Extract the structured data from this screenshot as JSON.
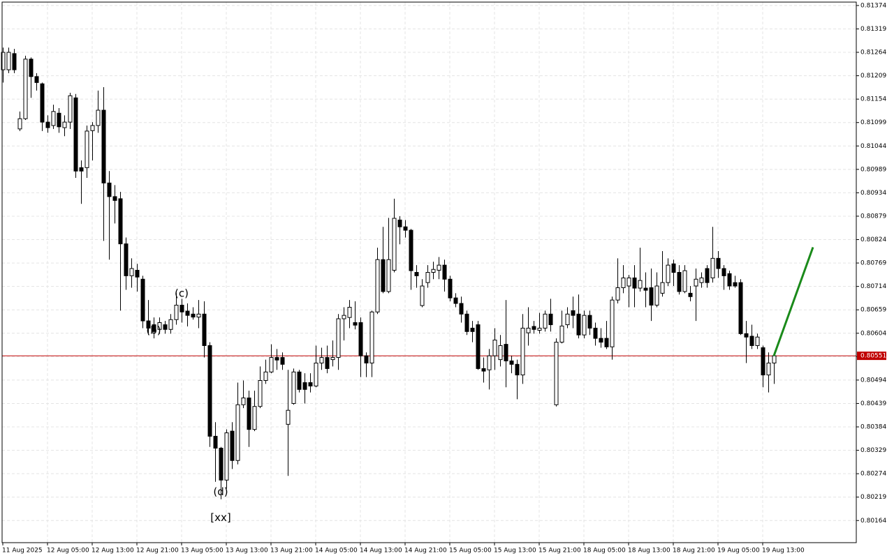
{
  "chart_data": {
    "type": "candlestick",
    "bull_color": "#ffffff",
    "bear_color": "#000000",
    "grid": true,
    "ylim": [
      0.80112,
      0.81382
    ],
    "yticks": [
      0.81374,
      0.81319,
      0.81264,
      0.81209,
      0.81154,
      0.81099,
      0.81044,
      0.80989,
      0.80934,
      0.80879,
      0.80824,
      0.80769,
      0.80714,
      0.80659,
      0.80604,
      0.80549,
      0.80494,
      0.80439,
      0.80384,
      0.80329,
      0.80274,
      0.80219,
      0.80164
    ],
    "categories": [
      "11 Aug 2025",
      null,
      null,
      null,
      null,
      null,
      null,
      null,
      "12 Aug 05:00",
      null,
      null,
      null,
      null,
      null,
      null,
      null,
      "12 Aug 13:00",
      null,
      null,
      null,
      null,
      null,
      null,
      null,
      "12 Aug 21:00",
      null,
      null,
      null,
      null,
      null,
      null,
      null,
      "13 Aug 05:00",
      null,
      null,
      null,
      null,
      null,
      null,
      null,
      "13 Aug 13:00",
      null,
      null,
      null,
      null,
      null,
      null,
      null,
      "13 Aug 21:00",
      null,
      null,
      null,
      null,
      null,
      null,
      null,
      "14 Aug 05:00",
      null,
      null,
      null,
      null,
      null,
      null,
      null,
      "14 Aug 13:00",
      null,
      null,
      null,
      null,
      null,
      null,
      null,
      "14 Aug 21:00",
      null,
      null,
      null,
      null,
      null,
      null,
      null,
      "15 Aug 05:00",
      null,
      null,
      null,
      null,
      null,
      null,
      null,
      "15 Aug 13:00",
      null,
      null,
      null,
      null,
      null,
      null,
      null,
      "15 Aug 21:00",
      null,
      null,
      null,
      null,
      null,
      null,
      null,
      "18 Aug 05:00",
      null,
      null,
      null,
      null,
      null,
      null,
      null,
      "18 Aug 13:00",
      null,
      null,
      null,
      null,
      null,
      null,
      null,
      "18 Aug 21:00",
      null,
      null,
      null,
      null,
      null,
      null,
      null,
      "19 Aug 05:00",
      null,
      null,
      null,
      null,
      null,
      null,
      null,
      "19 Aug 13:00",
      null,
      null
    ],
    "candles": [
      [
        0.81223,
        0.81275,
        0.81193,
        0.81264
      ],
      [
        0.81223,
        0.81275,
        0.81215,
        0.81264
      ],
      [
        0.81261,
        0.81272,
        0.81215,
        0.81223
      ],
      [
        0.81084,
        0.81125,
        0.81079,
        0.81108
      ],
      [
        0.81108,
        0.81256,
        0.81105,
        0.81248
      ],
      [
        0.81248,
        0.81252,
        0.81157,
        0.81207
      ],
      [
        0.81207,
        0.81215,
        0.81174,
        0.81193
      ],
      [
        0.8119,
        0.81193,
        0.81079,
        0.811
      ],
      [
        0.811,
        0.81116,
        0.81075,
        0.81087
      ],
      [
        0.81092,
        0.81141,
        0.81084,
        0.81125
      ],
      [
        0.81121,
        0.81133,
        0.81075,
        0.81089
      ],
      [
        0.81087,
        0.81116,
        0.81067,
        0.811
      ],
      [
        0.811,
        0.81169,
        0.81084,
        0.81162
      ],
      [
        0.81157,
        0.81166,
        0.80969,
        0.80985
      ],
      [
        0.80993,
        0.8101,
        0.80908,
        0.80985
      ],
      [
        0.80993,
        0.81092,
        0.80969,
        0.81079
      ],
      [
        0.8108,
        0.811,
        0.8101,
        0.81092
      ],
      [
        0.81092,
        0.81174,
        0.81075,
        0.81128
      ],
      [
        0.81128,
        0.81182,
        0.80821,
        0.80957
      ],
      [
        0.80957,
        0.80985,
        0.80777,
        0.80925
      ],
      [
        0.80925,
        0.80952,
        0.80862,
        0.80916
      ],
      [
        0.8092,
        0.80936,
        0.80657,
        0.80814
      ],
      [
        0.80814,
        0.80829,
        0.80706,
        0.80739
      ],
      [
        0.80739,
        0.8078,
        0.80711,
        0.80756
      ],
      [
        0.80752,
        0.80767,
        0.80702,
        0.80736
      ],
      [
        0.80731,
        0.80739,
        0.80616,
        0.80633
      ],
      [
        0.80633,
        0.80682,
        0.806,
        0.80616
      ],
      [
        0.80624,
        0.80641,
        0.80592,
        0.80608
      ],
      [
        0.80613,
        0.80641,
        0.80603,
        0.80629
      ],
      [
        0.80624,
        0.80633,
        0.80603,
        0.80613
      ],
      [
        0.80613,
        0.80649,
        0.80603,
        0.80636
      ],
      [
        0.80636,
        0.80698,
        0.80624,
        0.8067
      ],
      [
        0.8067,
        0.80685,
        0.80629,
        0.80654
      ],
      [
        0.80656,
        0.80674,
        0.8062,
        0.80646
      ],
      [
        0.80649,
        0.80665,
        0.80636,
        0.80642
      ],
      [
        0.80642,
        0.80682,
        0.80616,
        0.80649
      ],
      [
        0.80649,
        0.80679,
        0.80547,
        0.80575
      ],
      [
        0.80575,
        0.80583,
        0.80337,
        0.80362
      ],
      [
        0.80362,
        0.80395,
        0.80255,
        0.80334
      ],
      [
        0.80334,
        0.80337,
        0.80214,
        0.80259
      ],
      [
        0.80259,
        0.80378,
        0.80239,
        0.8037
      ],
      [
        0.80374,
        0.80395,
        0.80285,
        0.80305
      ],
      [
        0.80305,
        0.80488,
        0.80296,
        0.80436
      ],
      [
        0.80436,
        0.80493,
        0.80428,
        0.80452
      ],
      [
        0.80452,
        0.80469,
        0.80337,
        0.80378
      ],
      [
        0.80378,
        0.80469,
        0.80374,
        0.80432
      ],
      [
        0.80432,
        0.80526,
        0.80428,
        0.80493
      ],
      [
        0.80493,
        0.80542,
        0.80485,
        0.80513
      ],
      [
        0.80513,
        0.80578,
        0.8051,
        0.80547
      ],
      [
        0.80547,
        0.80567,
        0.80518,
        0.80541
      ],
      [
        0.80547,
        0.80559,
        0.80518,
        0.80531
      ],
      [
        0.8039,
        0.80518,
        0.80269,
        0.80423
      ],
      [
        0.80439,
        0.80521,
        0.80436,
        0.80513
      ],
      [
        0.80513,
        0.80518,
        0.80465,
        0.80472
      ],
      [
        0.80488,
        0.8051,
        0.80439,
        0.80472
      ],
      [
        0.80488,
        0.8051,
        0.80465,
        0.8048
      ],
      [
        0.8048,
        0.80575,
        0.80477,
        0.80534
      ],
      [
        0.80534,
        0.8057,
        0.80518,
        0.80547
      ],
      [
        0.80547,
        0.80575,
        0.8051,
        0.80521
      ],
      [
        0.80542,
        0.80587,
        0.80526,
        0.80547
      ],
      [
        0.80547,
        0.80649,
        0.80518,
        0.80638
      ],
      [
        0.80638,
        0.80665,
        0.80587,
        0.80646
      ],
      [
        0.80641,
        0.80682,
        0.80616,
        0.80665
      ],
      [
        0.80629,
        0.80679,
        0.80613,
        0.80623
      ],
      [
        0.80629,
        0.80641,
        0.80501,
        0.80551
      ],
      [
        0.80551,
        0.80559,
        0.80501,
        0.80534
      ],
      [
        0.80534,
        0.80657,
        0.80501,
        0.80654
      ],
      [
        0.80654,
        0.80805,
        0.80649,
        0.80777
      ],
      [
        0.80777,
        0.80854,
        0.80698,
        0.80702
      ],
      [
        0.80702,
        0.80875,
        0.80698,
        0.80777
      ],
      [
        0.80752,
        0.8092,
        0.80747,
        0.80874
      ],
      [
        0.8087,
        0.80879,
        0.80813,
        0.80854
      ],
      [
        0.80854,
        0.8087,
        0.80829,
        0.80846
      ],
      [
        0.80846,
        0.80849,
        0.80706,
        0.80751
      ],
      [
        0.80747,
        0.80764,
        0.80711,
        0.80739
      ],
      [
        0.80669,
        0.80731,
        0.80665,
        0.80715
      ],
      [
        0.80723,
        0.80764,
        0.80711,
        0.80747
      ],
      [
        0.80747,
        0.80772,
        0.80731,
        0.80754
      ],
      [
        0.80752,
        0.80783,
        0.80731,
        0.80764
      ],
      [
        0.80764,
        0.80777,
        0.80702,
        0.80731
      ],
      [
        0.80731,
        0.80739,
        0.80679,
        0.80687
      ],
      [
        0.80687,
        0.80698,
        0.80665,
        0.80674
      ],
      [
        0.80674,
        0.8069,
        0.80629,
        0.80649
      ],
      [
        0.80649,
        0.80657,
        0.806,
        0.80608
      ],
      [
        0.80616,
        0.80633,
        0.80583,
        0.80608
      ],
      [
        0.80624,
        0.80633,
        0.80518,
        0.80521
      ],
      [
        0.80521,
        0.80547,
        0.80488,
        0.80515
      ],
      [
        0.80518,
        0.80567,
        0.80472,
        0.80551
      ],
      [
        0.80551,
        0.80616,
        0.80518,
        0.80588
      ],
      [
        0.80542,
        0.806,
        0.80526,
        0.80575
      ],
      [
        0.80578,
        0.80682,
        0.80477,
        0.80539
      ],
      [
        0.80539,
        0.80551,
        0.8051,
        0.80531
      ],
      [
        0.80531,
        0.80542,
        0.80449,
        0.80506
      ],
      [
        0.80506,
        0.80649,
        0.80485,
        0.80616
      ],
      [
        0.80605,
        0.80665,
        0.80575,
        0.80616
      ],
      [
        0.8062,
        0.80633,
        0.80603,
        0.80613
      ],
      [
        0.80611,
        0.80652,
        0.80603,
        0.80616
      ],
      [
        0.80616,
        0.80657,
        0.80608,
        0.80649
      ],
      [
        0.80649,
        0.80685,
        0.80608,
        0.80624
      ],
      [
        0.80436,
        0.80592,
        0.80432,
        0.80583
      ],
      [
        0.80583,
        0.80657,
        0.8058,
        0.80621
      ],
      [
        0.80624,
        0.80665,
        0.80616,
        0.80649
      ],
      [
        0.80657,
        0.8069,
        0.80616,
        0.80646
      ],
      [
        0.80649,
        0.80695,
        0.80592,
        0.806
      ],
      [
        0.806,
        0.80657,
        0.80592,
        0.80646
      ],
      [
        0.80646,
        0.80657,
        0.806,
        0.80616
      ],
      [
        0.80616,
        0.80629,
        0.80575,
        0.80592
      ],
      [
        0.80592,
        0.80616,
        0.8057,
        0.80583
      ],
      [
        0.80592,
        0.80633,
        0.80567,
        0.80572
      ],
      [
        0.80572,
        0.8069,
        0.80542,
        0.80682
      ],
      [
        0.80682,
        0.8078,
        0.80674,
        0.80711
      ],
      [
        0.80711,
        0.80764,
        0.80698,
        0.80734
      ],
      [
        0.80715,
        0.80741,
        0.80665,
        0.80734
      ],
      [
        0.80734,
        0.80764,
        0.80665,
        0.8071
      ],
      [
        0.8071,
        0.80805,
        0.80702,
        0.80728
      ],
      [
        0.8071,
        0.80747,
        0.80665,
        0.80705
      ],
      [
        0.80711,
        0.80756,
        0.80633,
        0.8067
      ],
      [
        0.8067,
        0.80747,
        0.80665,
        0.80715
      ],
      [
        0.80698,
        0.80797,
        0.8069,
        0.80723
      ],
      [
        0.80723,
        0.8078,
        0.80715,
        0.80764
      ],
      [
        0.80767,
        0.80777,
        0.80715,
        0.80747
      ],
      [
        0.80747,
        0.80764,
        0.80695,
        0.80702
      ],
      [
        0.80702,
        0.80764,
        0.80698,
        0.80751
      ],
      [
        0.80698,
        0.80715,
        0.80679,
        0.8069
      ],
      [
        0.80715,
        0.80756,
        0.80633,
        0.80731
      ],
      [
        0.80723,
        0.80747,
        0.80711,
        0.80734
      ],
      [
        0.80756,
        0.80764,
        0.80711,
        0.80723
      ],
      [
        0.80734,
        0.80854,
        0.80723,
        0.8078
      ],
      [
        0.8078,
        0.80797,
        0.80734,
        0.80756
      ],
      [
        0.80756,
        0.80764,
        0.80706,
        0.80739
      ],
      [
        0.80744,
        0.80751,
        0.80706,
        0.80715
      ],
      [
        0.80723,
        0.80739,
        0.80711,
        0.80715
      ],
      [
        0.80723,
        0.80731,
        0.806,
        0.80603
      ],
      [
        0.80603,
        0.80633,
        0.80534,
        0.80595
      ],
      [
        0.80597,
        0.80624,
        0.80567,
        0.80575
      ],
      [
        0.80575,
        0.80603,
        0.80567,
        0.80595
      ],
      [
        0.8057,
        0.80575,
        0.80477,
        0.80506
      ],
      [
        0.80506,
        0.80559,
        0.80465,
        0.80534
      ],
      [
        0.80534,
        0.80559,
        0.80485,
        0.80551
      ]
    ],
    "price_line": {
      "value": 0.80551,
      "color": "#c00000"
    },
    "forecast": {
      "color": "#1a8a1a",
      "x": [
        138,
        145
      ],
      "values": [
        0.80551,
        0.80806
      ]
    },
    "annotations": [
      {
        "text": "(b)",
        "x": 27,
        "y": 0.8061,
        "color": "#2222cc"
      },
      {
        "text": "(c)",
        "x": 32,
        "y": 0.80697,
        "color": "#2222cc"
      },
      {
        "text": "(d)",
        "x": 39,
        "y": 0.80231,
        "color": "#2222cc"
      },
      {
        "text": "[xx]",
        "x": 39,
        "y": 0.8017,
        "color": "#33cc33"
      }
    ]
  }
}
